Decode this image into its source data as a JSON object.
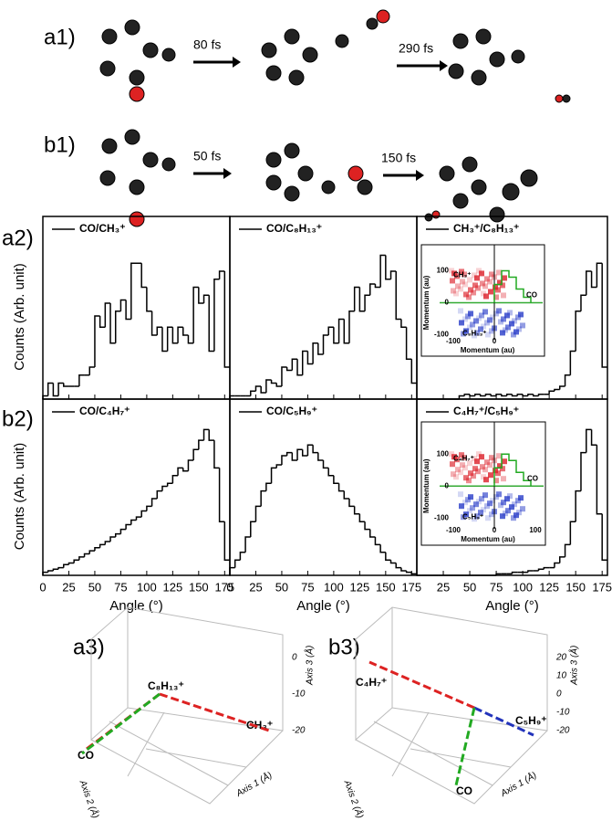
{
  "labels": {
    "a1": "a1)",
    "b1": "b1)",
    "a2": "a2)",
    "b2": "b2)",
    "a3": "a3)",
    "b3": "b3)"
  },
  "reaction_a": {
    "steps": [
      "80 fs",
      "290 fs"
    ]
  },
  "reaction_b": {
    "steps": [
      "50 fs",
      "150 fs"
    ]
  },
  "chart_data": [
    {
      "type": "histogram",
      "name": "CO/CH₃⁺",
      "ylabel": "Counts (Arb. unit)",
      "color": "#000000",
      "bins": [
        0,
        5,
        10,
        15,
        20,
        25,
        30,
        35,
        40,
        45,
        50,
        55,
        60,
        65,
        70,
        75,
        80,
        85,
        90,
        95,
        100,
        105,
        110,
        115,
        120,
        125,
        130,
        135,
        140,
        145,
        150,
        155,
        160,
        165,
        170,
        175,
        180
      ],
      "counts": [
        2,
        10,
        2,
        10,
        8,
        8,
        8,
        15,
        15,
        20,
        52,
        45,
        60,
        35,
        55,
        62,
        50,
        85,
        85,
        70,
        55,
        40,
        45,
        30,
        45,
        35,
        45,
        40,
        35,
        70,
        60,
        65,
        30,
        75,
        80,
        20
      ],
      "xlim": [
        0,
        180
      ],
      "ylim": [
        0,
        100
      ],
      "xticks": [
        0,
        25,
        50,
        75,
        100,
        125,
        150,
        175
      ]
    },
    {
      "type": "histogram",
      "name": "CO/C₈H₁₃⁺",
      "color": "#000000",
      "bins": [
        0,
        5,
        10,
        15,
        20,
        25,
        30,
        35,
        40,
        45,
        50,
        55,
        60,
        65,
        70,
        75,
        80,
        85,
        90,
        95,
        100,
        105,
        110,
        115,
        120,
        125,
        130,
        135,
        140,
        145,
        150,
        155,
        160,
        165,
        170,
        175,
        180
      ],
      "counts": [
        2,
        2,
        2,
        2,
        5,
        8,
        4,
        12,
        10,
        8,
        20,
        18,
        25,
        15,
        30,
        22,
        35,
        28,
        40,
        45,
        35,
        50,
        35,
        55,
        70,
        55,
        65,
        72,
        70,
        90,
        75,
        80,
        50,
        45,
        25,
        10
      ],
      "xlim": [
        0,
        180
      ],
      "ylim": [
        0,
        100
      ],
      "xticks": [
        0,
        25,
        50,
        75,
        100,
        125,
        150,
        175
      ]
    },
    {
      "type": "histogram",
      "name": "CH₃⁺/C₈H₁₃⁺",
      "color": "#000000",
      "bins": [
        0,
        5,
        10,
        15,
        20,
        25,
        30,
        35,
        40,
        45,
        50,
        55,
        60,
        65,
        70,
        75,
        80,
        85,
        90,
        95,
        100,
        105,
        110,
        115,
        120,
        125,
        130,
        135,
        140,
        145,
        150,
        155,
        160,
        165,
        170,
        175,
        180
      ],
      "counts": [
        0,
        0,
        0,
        0,
        0,
        0,
        0,
        0,
        2,
        3,
        2,
        3,
        2,
        3,
        2,
        3,
        2,
        3,
        2,
        3,
        2,
        3,
        2,
        3,
        3,
        5,
        6,
        8,
        15,
        30,
        55,
        65,
        80,
        70,
        85,
        20
      ],
      "xlim": [
        0,
        180
      ],
      "ylim": [
        0,
        100
      ],
      "xticks": [
        25,
        50,
        75,
        100,
        125,
        150,
        175
      ]
    },
    {
      "type": "histogram",
      "name": "CO/C₄H₇⁺",
      "ylabel": "Counts (Arb. unit)",
      "xlabel": "Angle (°)",
      "color": "#000000",
      "bins": [
        0,
        5,
        10,
        15,
        20,
        25,
        30,
        35,
        40,
        45,
        50,
        55,
        60,
        65,
        70,
        75,
        80,
        85,
        90,
        95,
        100,
        105,
        110,
        115,
        120,
        125,
        130,
        135,
        140,
        145,
        150,
        155,
        160,
        165,
        170,
        175,
        180
      ],
      "counts": [
        2,
        3,
        4,
        5,
        7,
        8,
        10,
        12,
        14,
        16,
        18,
        20,
        22,
        25,
        27,
        30,
        33,
        36,
        38,
        42,
        45,
        50,
        55,
        58,
        60,
        65,
        70,
        68,
        75,
        82,
        88,
        95,
        88,
        70,
        35,
        10
      ],
      "xlim": [
        0,
        180
      ],
      "ylim": [
        0,
        100
      ],
      "xticks": [
        0,
        25,
        50,
        75,
        100,
        125,
        150,
        175
      ]
    },
    {
      "type": "histogram",
      "name": "CO/C₅H₉⁺",
      "xlabel": "Angle (°)",
      "color": "#000000",
      "bins": [
        0,
        5,
        10,
        15,
        20,
        25,
        30,
        35,
        40,
        45,
        50,
        55,
        60,
        65,
        70,
        75,
        80,
        85,
        90,
        95,
        100,
        105,
        110,
        115,
        120,
        125,
        130,
        135,
        140,
        145,
        150,
        155,
        160,
        165,
        170,
        175,
        180
      ],
      "counts": [
        5,
        10,
        15,
        25,
        35,
        45,
        55,
        60,
        70,
        72,
        78,
        80,
        75,
        82,
        78,
        85,
        80,
        75,
        70,
        65,
        60,
        55,
        50,
        45,
        40,
        35,
        30,
        25,
        20,
        15,
        10,
        8,
        5,
        3,
        2,
        1
      ],
      "xlim": [
        0,
        180
      ],
      "ylim": [
        0,
        100
      ],
      "xticks": [
        0,
        25,
        50,
        75,
        100,
        125,
        150,
        175
      ]
    },
    {
      "type": "histogram",
      "name": "C₄H₇⁺/C₅H₉⁺",
      "xlabel": "Angle (°)",
      "color": "#000000",
      "bins": [
        0,
        5,
        10,
        15,
        20,
        25,
        30,
        35,
        40,
        45,
        50,
        55,
        60,
        65,
        70,
        75,
        80,
        85,
        90,
        95,
        100,
        105,
        110,
        115,
        120,
        125,
        130,
        135,
        140,
        145,
        150,
        155,
        160,
        165,
        170,
        175,
        180
      ],
      "counts": [
        0,
        0,
        0,
        0,
        0,
        0,
        0,
        0,
        0,
        0,
        0,
        0,
        0,
        0,
        0,
        1,
        1,
        1,
        2,
        2,
        2,
        3,
        3,
        4,
        5,
        5,
        8,
        12,
        20,
        35,
        55,
        80,
        95,
        85,
        40,
        10
      ],
      "xlim": [
        0,
        180
      ],
      "ylim": [
        0,
        100
      ],
      "xticks": [
        25,
        50,
        75,
        100,
        125,
        150,
        175
      ]
    }
  ],
  "insets": [
    {
      "ion_top": "CH₃⁺",
      "ion_bottom": "C₈H₁₃⁺",
      "co": "CO",
      "xlabel": "Momentum (au)",
      "ylabel": "Momentum (au)",
      "xticks": [
        "-100",
        "0"
      ],
      "yticks": [
        "100",
        "0",
        "-100"
      ]
    },
    {
      "ion_top": "C₄H₇⁺",
      "ion_bottom": "C₅H₉⁺",
      "co": "CO",
      "xlabel": "Momentum (au)",
      "ylabel": "Momentum (au)",
      "xticks": [
        "-100",
        "0",
        "100"
      ],
      "yticks": [
        "100",
        "0",
        "-100"
      ]
    }
  ],
  "plots3d": [
    {
      "ion_a": "C₈H₁₃⁺",
      "ion_b": "CH₃⁺",
      "co": "CO",
      "axis1": "Axis 1 (Å)",
      "axis2": "Axis 2 (Å)",
      "axis3": "Axis 3 (Å)",
      "axis3_ticks": [
        "0",
        "-10",
        "-20"
      ]
    },
    {
      "ion_a": "C₄H₇⁺",
      "ion_b": "C₅H₉⁺",
      "co": "CO",
      "axis1": "Axis 1 (Å)",
      "axis2": "Axis 2 (Å)",
      "axis3": "Axis 3 (Å)",
      "axis3_ticks": [
        "20",
        "10",
        "0",
        "-10",
        "-20"
      ]
    }
  ]
}
